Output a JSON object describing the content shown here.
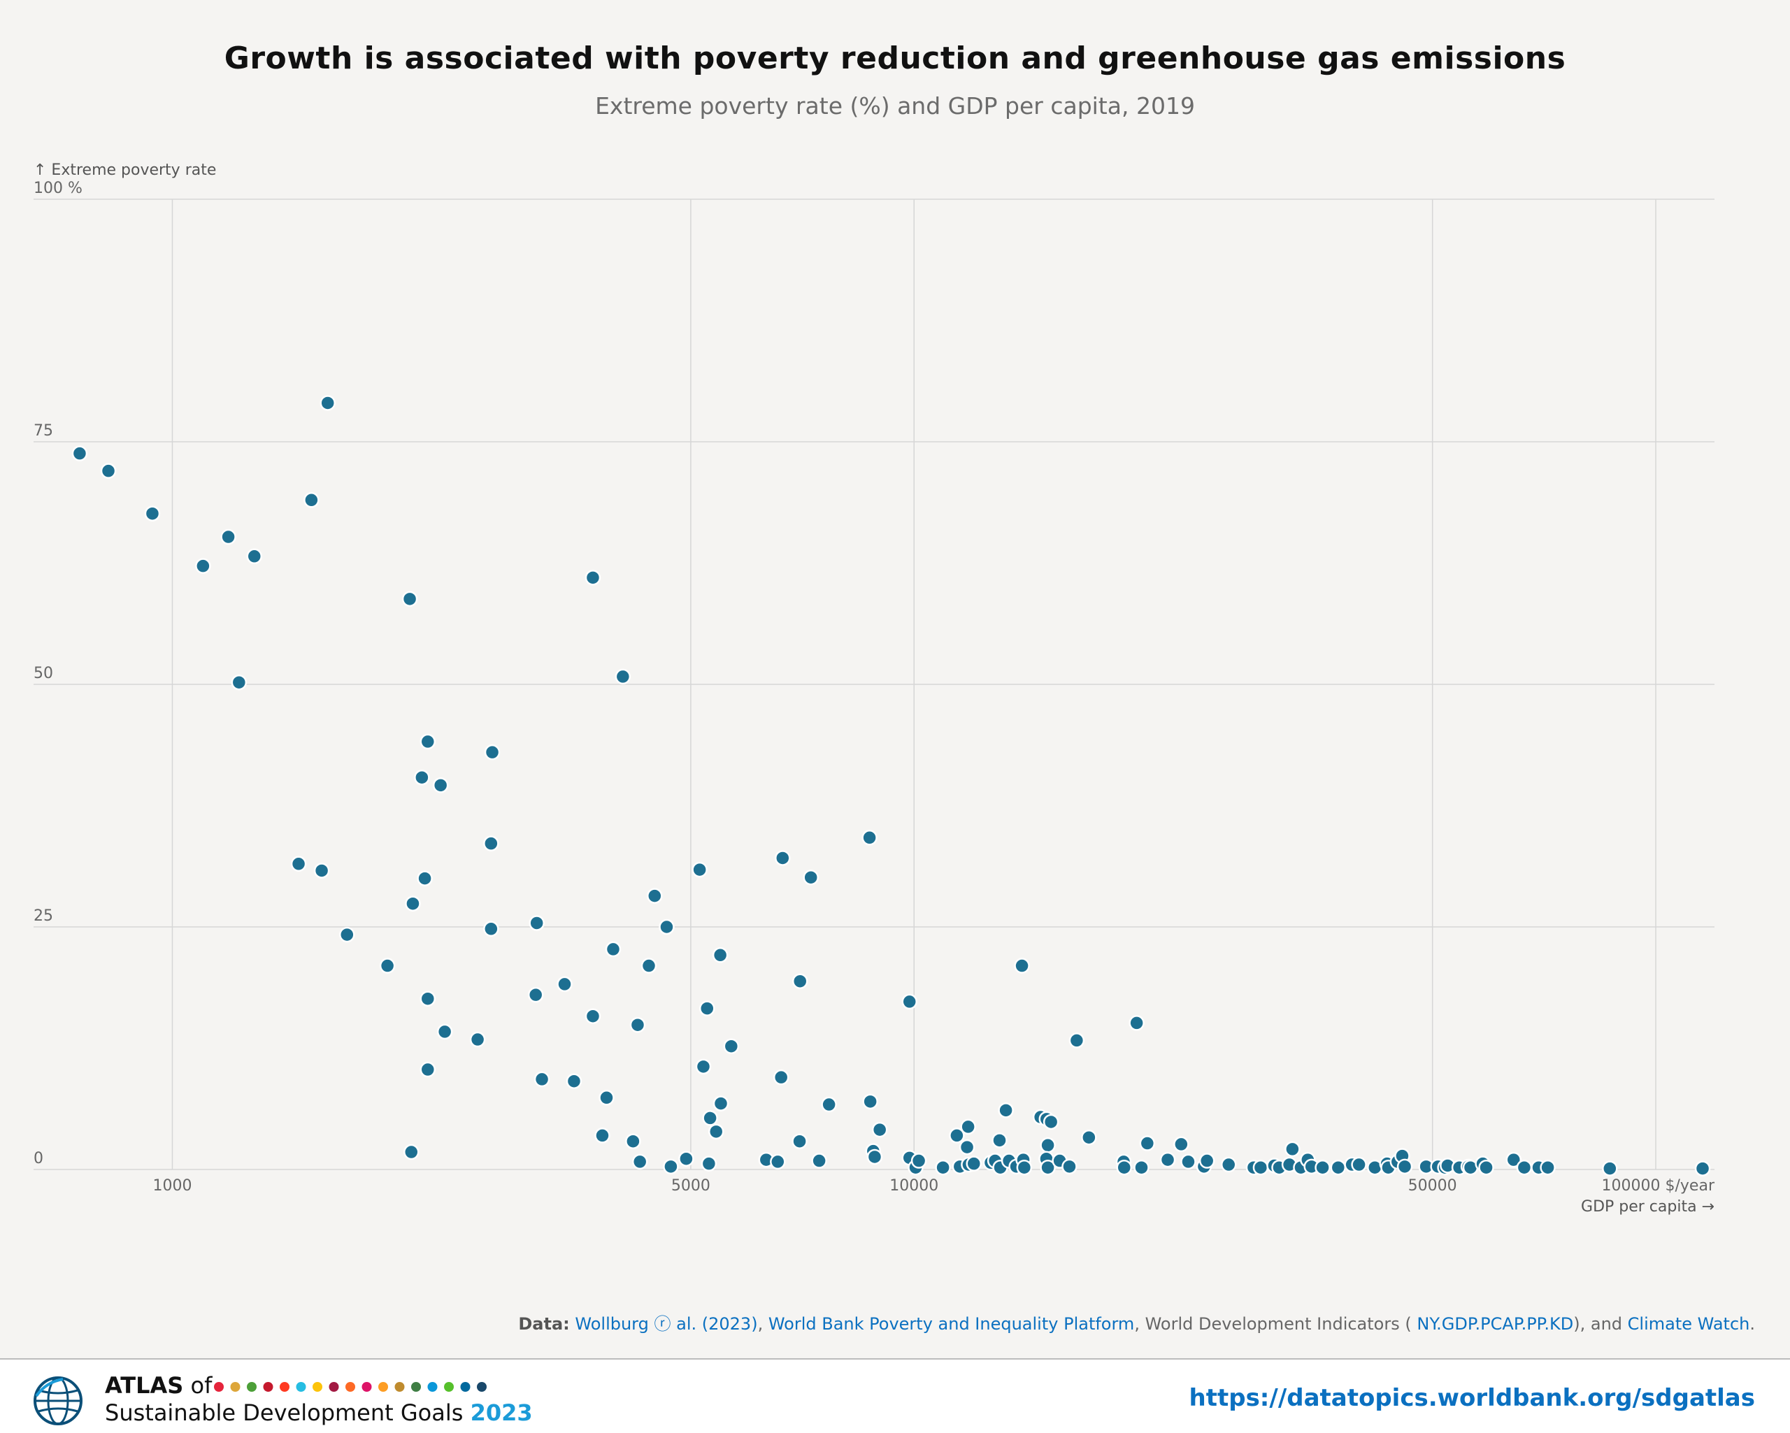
{
  "title": "Growth is associated with poverty reduction and greenhouse gas emissions",
  "subtitle": "Extreme poverty rate (%) and GDP per capita, 2019",
  "source": {
    "prefix": "Data:",
    "link1": "Wollburg ⓡ al. (2023)",
    "sep1": ", ",
    "link2": "World Bank Poverty and Inequality Platform",
    "mid": ", World Development Indicators ( ",
    "link3": "NY.GDP.PCAP.PP.KD",
    "mid2": "), and ",
    "link4": "Climate Watch",
    "end": "."
  },
  "footer": {
    "brand_atlas": "ATLAS",
    "brand_of": "of",
    "brand_line2": "Sustainable Development Goals",
    "brand_year": "2023",
    "url": "https://datatopics.worldbank.org/sdgatlas",
    "sdg_colors": [
      "#e5243b",
      "#dda63a",
      "#4c9f38",
      "#c5192d",
      "#ff3a21",
      "#26bde2",
      "#fcc30b",
      "#a21942",
      "#fd6925",
      "#dd1367",
      "#fd9d24",
      "#bf8b2e",
      "#3f7e44",
      "#0a97d9",
      "#56c02b",
      "#00689d",
      "#19486a"
    ]
  },
  "chart_data": {
    "type": "scatter",
    "title": "Growth is associated with poverty reduction and greenhouse gas emissions",
    "subtitle": "Extreme poverty rate (%) and GDP per capita, 2019",
    "x_scale": "log",
    "xlabel": "GDP per capita →",
    "x_unit": "$/year",
    "ylabel": "↑ Extreme poverty rate",
    "y_unit": "%",
    "xlim": [
      650,
      120000
    ],
    "ylim": [
      0,
      100
    ],
    "x_ticks": [
      1000,
      5000,
      10000,
      50000,
      100000
    ],
    "x_tick_labels": [
      "1000",
      "5000",
      "10000",
      "50000",
      "100000 $/year"
    ],
    "y_ticks": [
      0,
      25,
      50,
      75,
      100
    ],
    "y_tick_labels": [
      "0",
      "25",
      "50",
      "75",
      "100 %"
    ],
    "grid": true,
    "marker_color": "#1d6f91",
    "points": [
      [
        750,
        73.8
      ],
      [
        820,
        72
      ],
      [
        940,
        67.6
      ],
      [
        1100,
        62.2
      ],
      [
        1190,
        65.2
      ],
      [
        1290,
        63.2
      ],
      [
        1230,
        50.2
      ],
      [
        1620,
        79
      ],
      [
        1540,
        69
      ],
      [
        1480,
        31.5
      ],
      [
        1590,
        30.8
      ],
      [
        1720,
        24.2
      ],
      [
        1950,
        21
      ],
      [
        2090,
        58.8
      ],
      [
        2210,
        44.1
      ],
      [
        2170,
        40.4
      ],
      [
        2300,
        39.6
      ],
      [
        2700,
        43
      ],
      [
        2690,
        33.6
      ],
      [
        2190,
        30
      ],
      [
        2110,
        27.4
      ],
      [
        2690,
        24.8
      ],
      [
        2210,
        17.6
      ],
      [
        2330,
        14.2
      ],
      [
        2580,
        13.4
      ],
      [
        2210,
        10.3
      ],
      [
        2100,
        1.8
      ],
      [
        3690,
        61
      ],
      [
        4050,
        50.8
      ],
      [
        3100,
        25.4
      ],
      [
        3090,
        18
      ],
      [
        3380,
        19.1
      ],
      [
        3690,
        15.8
      ],
      [
        3930,
        22.7
      ],
      [
        4390,
        21
      ],
      [
        4470,
        28.2
      ],
      [
        4640,
        25
      ],
      [
        4240,
        14.9
      ],
      [
        3150,
        9.3
      ],
      [
        3480,
        9.1
      ],
      [
        3850,
        7.4
      ],
      [
        3800,
        3.5
      ],
      [
        4180,
        2.9
      ],
      [
        4270,
        0.8
      ],
      [
        4700,
        0.3
      ],
      [
        4930,
        1.1
      ],
      [
        5140,
        30.9
      ],
      [
        5260,
        16.6
      ],
      [
        5200,
        10.6
      ],
      [
        5310,
        5.3
      ],
      [
        5410,
        3.9
      ],
      [
        5490,
        6.8
      ],
      [
        5480,
        22.1
      ],
      [
        5670,
        12.7
      ],
      [
        5290,
        0.6
      ],
      [
        6650,
        32.1
      ],
      [
        7260,
        30.1
      ],
      [
        7020,
        19.4
      ],
      [
        6620,
        9.5
      ],
      [
        7680,
        6.7
      ],
      [
        8710,
        34.2
      ],
      [
        8730,
        7
      ],
      [
        8990,
        4.1
      ],
      [
        8810,
        1.9
      ],
      [
        8850,
        1.3
      ],
      [
        7010,
        2.9
      ],
      [
        6320,
        1
      ],
      [
        6550,
        0.8
      ],
      [
        7450,
        0.9
      ],
      [
        9860,
        17.3
      ],
      [
        9860,
        1.2
      ],
      [
        10050,
        0.2
      ],
      [
        10150,
        0.9
      ],
      [
        10940,
        0.2
      ],
      [
        11420,
        3.5
      ],
      [
        11530,
        0.3
      ],
      [
        11790,
        2.3
      ],
      [
        11830,
        4.4
      ],
      [
        11850,
        0.5
      ],
      [
        12040,
        0.6
      ],
      [
        12690,
        0.7
      ],
      [
        12860,
        0.9
      ],
      [
        13040,
        3
      ],
      [
        13070,
        0.2
      ],
      [
        13300,
        6.1
      ],
      [
        13430,
        0.9
      ],
      [
        13740,
        0.3
      ],
      [
        13980,
        21
      ],
      [
        14040,
        1
      ],
      [
        14080,
        0.2
      ],
      [
        14810,
        5.4
      ],
      [
        15090,
        5.2
      ],
      [
        15300,
        4.9
      ],
      [
        15150,
        2.5
      ],
      [
        15080,
        1.1
      ],
      [
        15150,
        0.2
      ],
      [
        15720,
        0.9
      ],
      [
        16200,
        0.3
      ],
      [
        16570,
        13.3
      ],
      [
        17210,
        3.3
      ],
      [
        19170,
        0.8
      ],
      [
        19200,
        0.2
      ],
      [
        19960,
        15.1
      ],
      [
        20260,
        0.2
      ],
      [
        20630,
        2.7
      ],
      [
        21980,
        1
      ],
      [
        22920,
        2.6
      ],
      [
        23430,
        0.8
      ],
      [
        24600,
        0.3
      ],
      [
        24830,
        0.9
      ],
      [
        26560,
        0.5
      ],
      [
        28700,
        0.2
      ],
      [
        29330,
        0.2
      ],
      [
        30600,
        0.4
      ],
      [
        31070,
        0.2
      ],
      [
        32070,
        0.5
      ],
      [
        32370,
        2.1
      ],
      [
        33230,
        0.2
      ],
      [
        33950,
        1
      ],
      [
        34350,
        0.3
      ],
      [
        35550,
        0.2
      ],
      [
        37310,
        0.2
      ],
      [
        38950,
        0.5
      ],
      [
        39800,
        0.5
      ],
      [
        41810,
        0.2
      ],
      [
        43420,
        0.6
      ],
      [
        43590,
        0.2
      ],
      [
        44870,
        0.8
      ],
      [
        45520,
        1.4
      ],
      [
        45880,
        0.3
      ],
      [
        49030,
        0.3
      ],
      [
        50870,
        0.3
      ],
      [
        51980,
        0.2
      ],
      [
        52410,
        0.4
      ],
      [
        54350,
        0.2
      ],
      [
        55900,
        0.3
      ],
      [
        56260,
        0.2
      ],
      [
        58450,
        0.6
      ],
      [
        59080,
        0.2
      ],
      [
        64330,
        1
      ],
      [
        66480,
        0.2
      ],
      [
        69520,
        0.2
      ],
      [
        71520,
        0.2
      ],
      [
        86710,
        0.1
      ],
      [
        115660,
        0.1
      ]
    ]
  }
}
